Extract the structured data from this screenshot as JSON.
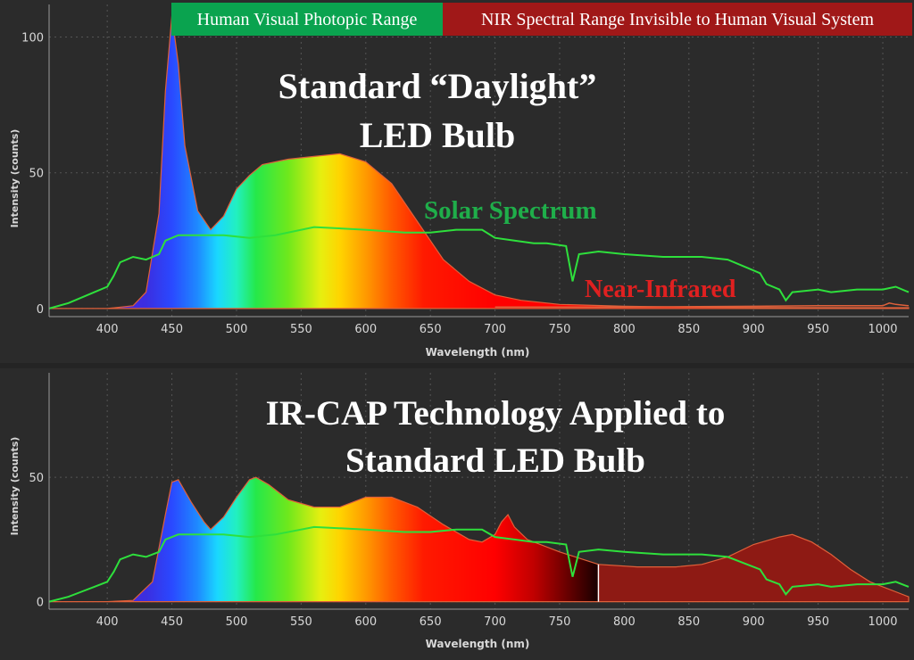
{
  "banners": {
    "visible": {
      "label": "Human Visual Photopic Range",
      "color": "#0aa34f"
    },
    "nir": {
      "label": "NIR Spectral Range Invisible to Human Visual System",
      "color": "#a01818"
    }
  },
  "colors": {
    "background": "#2b2b2b",
    "solar": "#2ee03c",
    "near_ir": "#e02020",
    "outline": "#e0603a",
    "divider": "#ffffff",
    "grid": "#5a5a5a",
    "axis_text": "#d8d8d8"
  },
  "chart_data": [
    {
      "type": "area",
      "title": "Standard “Daylight” LED Bulb",
      "title_lines": [
        "Standard “Daylight”",
        "LED Bulb"
      ],
      "xlabel": "Wavelength (nm)",
      "ylabel": "Intensity (counts)",
      "xlim": [
        355,
        1020
      ],
      "ylim": [
        -3,
        112
      ],
      "xticks": [
        400,
        450,
        500,
        550,
        600,
        650,
        700,
        750,
        800,
        850,
        900,
        950,
        1000
      ],
      "yticks": [
        0,
        50,
        100
      ],
      "annotations": [
        {
          "text": "Solar Spectrum",
          "color": "#1fae4a"
        },
        {
          "text": "Near-Infrared",
          "color": "#e02020"
        }
      ],
      "series": [
        {
          "name": "LED spectrum",
          "x": [
            355,
            400,
            420,
            430,
            440,
            445,
            450,
            455,
            460,
            470,
            480,
            490,
            500,
            510,
            520,
            540,
            560,
            580,
            600,
            620,
            640,
            660,
            680,
            700,
            720,
            750,
            800,
            850,
            900,
            1000,
            1020
          ],
          "values": [
            0,
            0,
            1,
            6,
            35,
            80,
            108,
            90,
            60,
            36,
            29,
            34,
            44,
            49,
            53,
            55,
            56,
            57,
            54,
            46,
            32,
            18,
            10,
            5,
            3,
            1.5,
            0.8,
            0.5,
            0.4,
            0.3,
            0.3
          ]
        },
        {
          "name": "Solar Spectrum",
          "x": [
            355,
            370,
            380,
            390,
            400,
            405,
            410,
            420,
            430,
            440,
            445,
            455,
            470,
            490,
            510,
            530,
            560,
            600,
            630,
            650,
            670,
            690,
            700,
            715,
            730,
            740,
            755,
            760,
            765,
            780,
            800,
            830,
            860,
            880,
            895,
            905,
            910,
            920,
            925,
            930,
            950,
            960,
            980,
            1000,
            1010,
            1020
          ],
          "values": [
            0,
            2,
            4,
            6,
            8,
            12,
            17,
            19,
            18,
            20,
            25,
            27,
            27,
            27,
            26,
            27,
            30,
            29,
            28,
            28,
            29,
            29,
            26,
            25,
            24,
            24,
            23,
            10,
            20,
            21,
            20,
            19,
            19,
            18,
            15,
            13,
            9,
            7,
            3,
            6,
            7,
            6,
            7,
            7,
            8,
            6
          ]
        },
        {
          "name": "Near-Infrared",
          "x": [
            700,
            800,
            900,
            950,
            1000,
            1005,
            1010,
            1020
          ],
          "values": [
            0.5,
            0.5,
            0.8,
            1,
            1,
            2,
            1.5,
            1
          ]
        }
      ]
    },
    {
      "type": "area",
      "title": "IR-CAP Technology Applied to Standard LED Bulb",
      "title_lines": [
        "IR-CAP Technology Applied to",
        "Standard LED Bulb"
      ],
      "xlabel": "Wavelength (nm)",
      "ylabel": "Intensity (counts)",
      "xlim": [
        355,
        1020
      ],
      "ylim": [
        -3,
        92
      ],
      "xticks": [
        400,
        450,
        500,
        550,
        600,
        650,
        700,
        750,
        800,
        850,
        900,
        950,
        1000
      ],
      "yticks": [
        0,
        50
      ],
      "divider_at": 780,
      "series": [
        {
          "name": "IR-CAP LED spectrum",
          "x": [
            355,
            400,
            420,
            435,
            445,
            450,
            455,
            465,
            475,
            480,
            490,
            500,
            510,
            515,
            525,
            540,
            560,
            580,
            600,
            620,
            640,
            660,
            680,
            690,
            700,
            705,
            710,
            715,
            725,
            750,
            780,
            810,
            840,
            860,
            880,
            900,
            920,
            930,
            945,
            960,
            975,
            990,
            1000,
            1010,
            1020
          ],
          "values": [
            0,
            0,
            0.5,
            8,
            35,
            48,
            49,
            40,
            32,
            29,
            34,
            42,
            49,
            50,
            47,
            41,
            38,
            38,
            42,
            42,
            38,
            31,
            25,
            24,
            27,
            32,
            35,
            30,
            25,
            20,
            15,
            14,
            14,
            15,
            18,
            23,
            26,
            27,
            24,
            19,
            13,
            8,
            6,
            4,
            2
          ]
        },
        {
          "name": "Solar Spectrum",
          "x": [
            355,
            370,
            380,
            390,
            400,
            405,
            410,
            420,
            430,
            440,
            445,
            455,
            470,
            490,
            510,
            530,
            560,
            600,
            630,
            650,
            670,
            690,
            700,
            715,
            730,
            740,
            755,
            760,
            765,
            780,
            800,
            830,
            860,
            880,
            895,
            905,
            910,
            920,
            925,
            930,
            950,
            960,
            980,
            1000,
            1010,
            1020
          ],
          "values": [
            0,
            2,
            4,
            6,
            8,
            12,
            17,
            19,
            18,
            20,
            25,
            27,
            27,
            27,
            26,
            27,
            30,
            29,
            28,
            28,
            29,
            29,
            26,
            25,
            24,
            24,
            23,
            10,
            20,
            21,
            20,
            19,
            19,
            18,
            15,
            13,
            9,
            7,
            3,
            6,
            7,
            6,
            7,
            7,
            8,
            6
          ]
        }
      ]
    }
  ]
}
